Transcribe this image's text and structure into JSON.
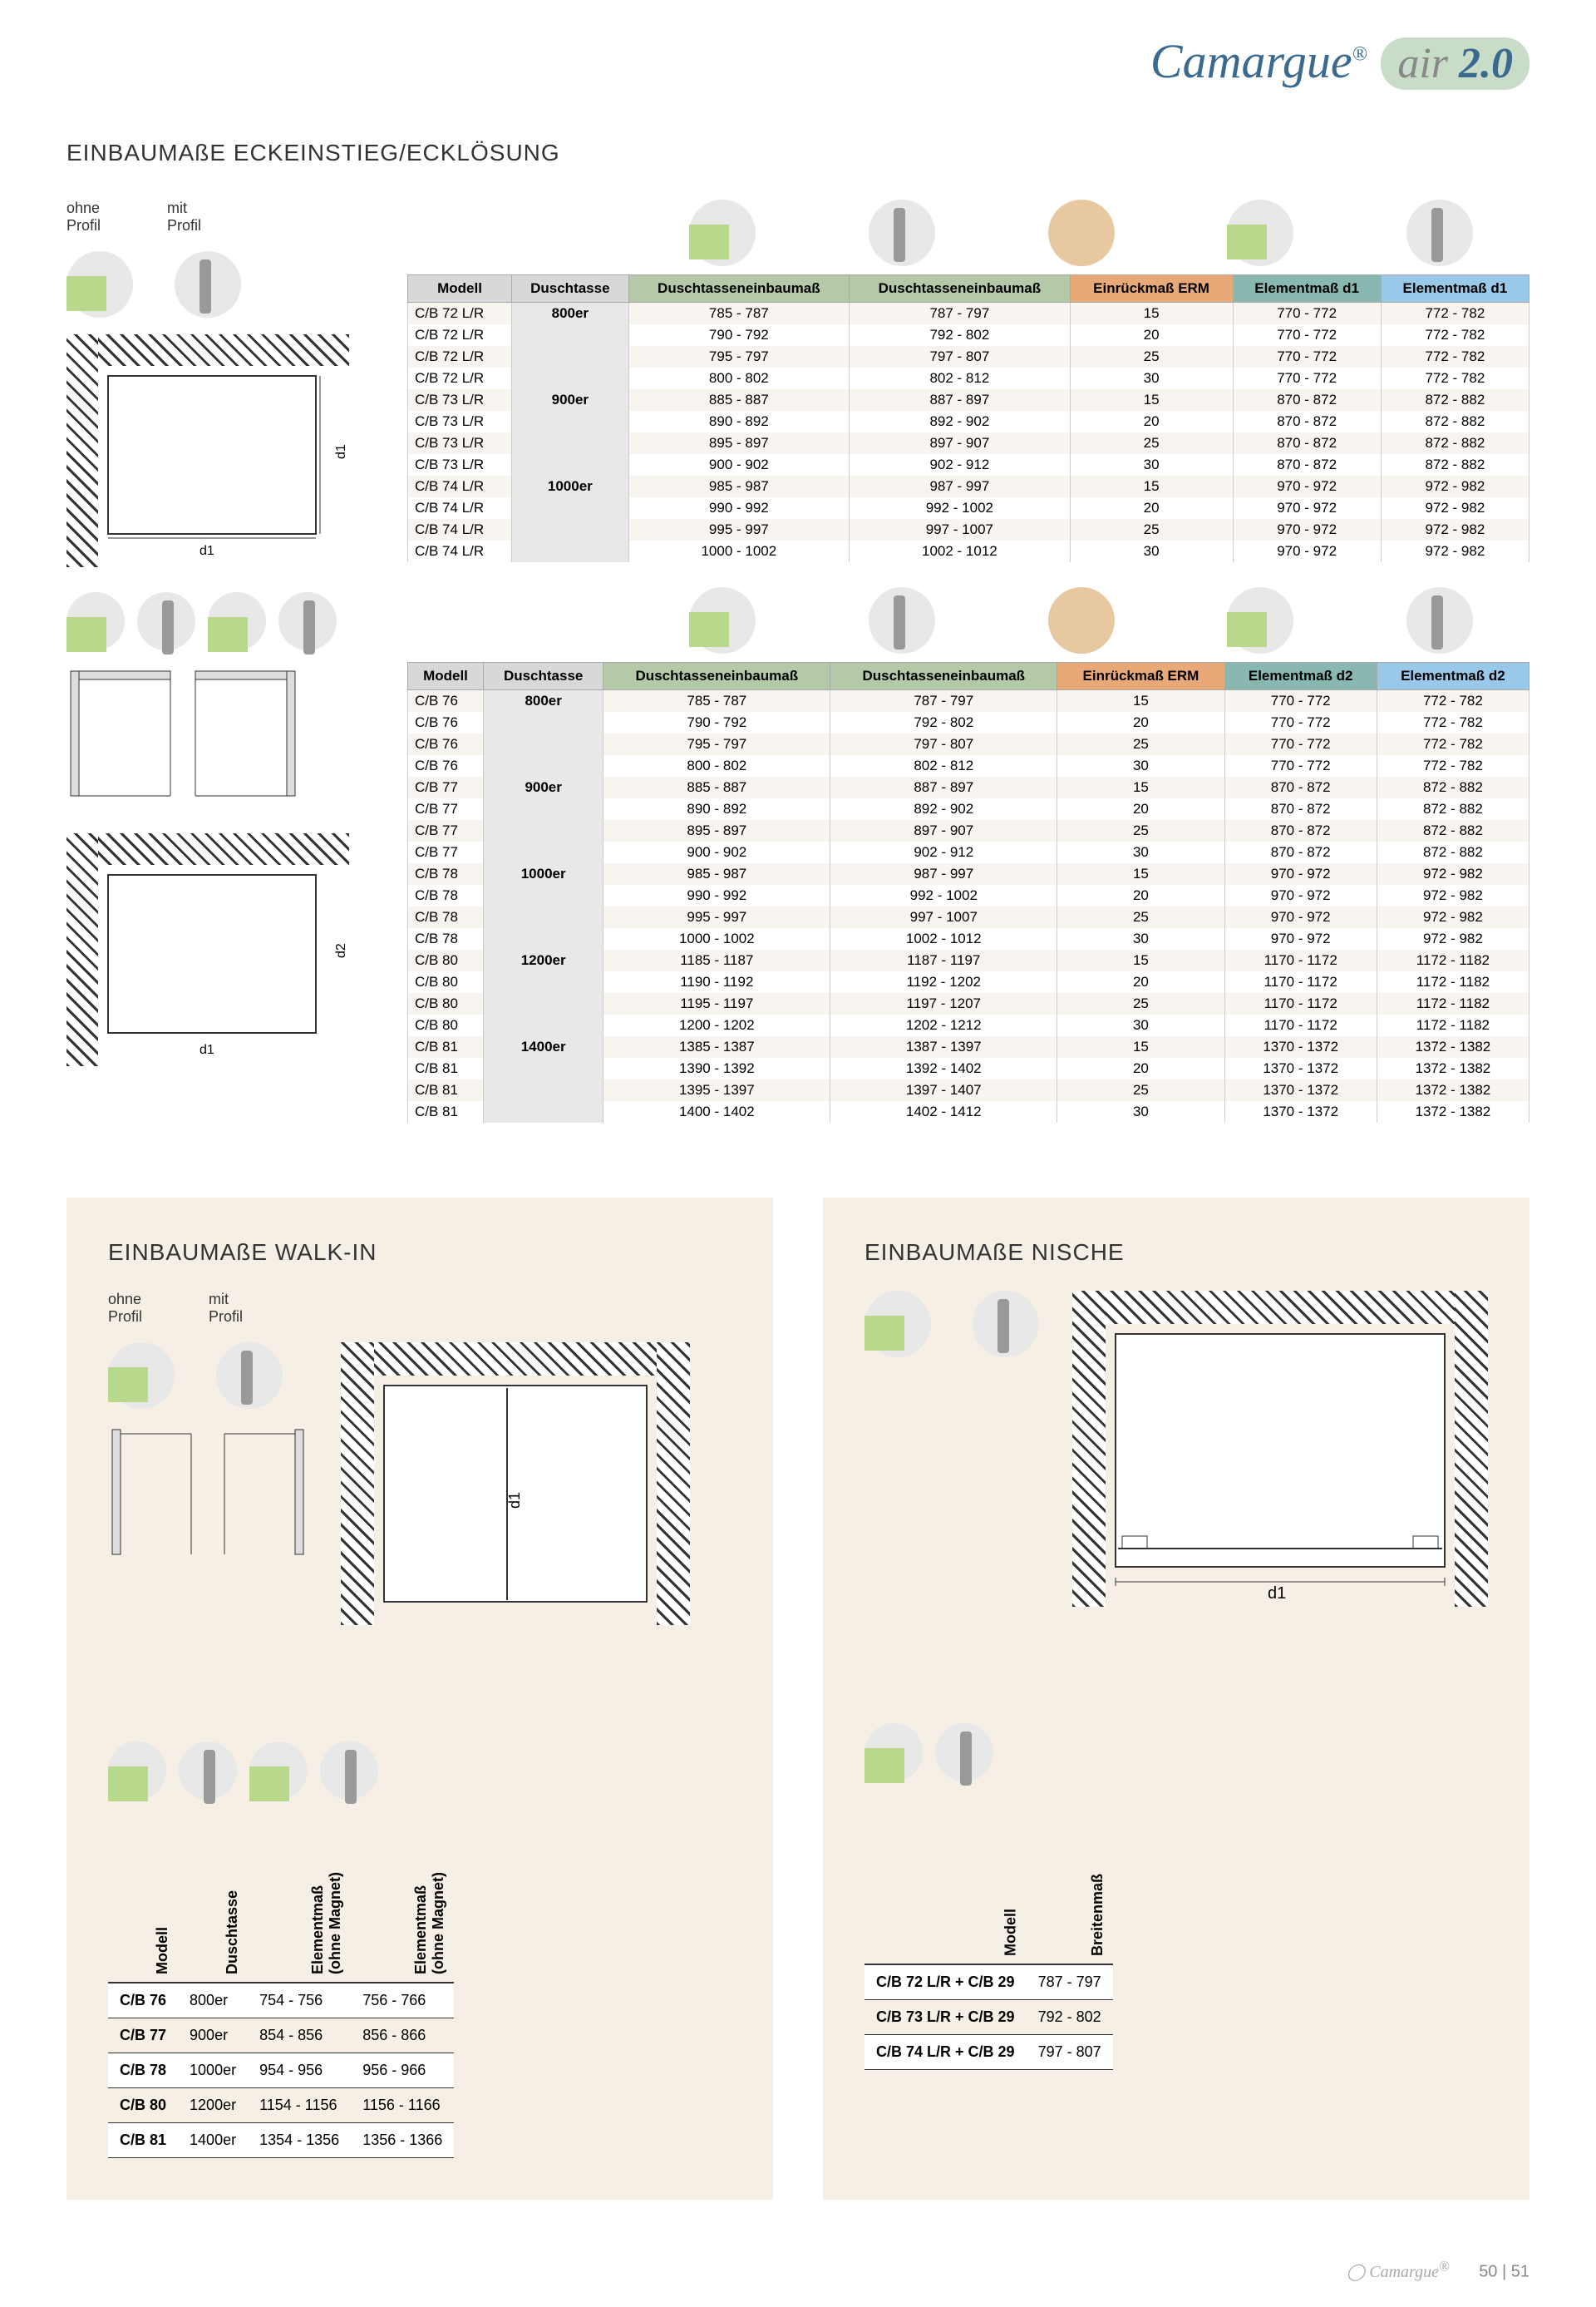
{
  "brand": {
    "name": "Camargue",
    "sub": "air",
    "ver": "2.0"
  },
  "page_numbers": "50 | 51",
  "sections": {
    "eck": "EINBAUMAßE ECKEINSTIEG/ECKLÖSUNG",
    "walkin": "EINBAUMAßE WALK-IN",
    "nische": "EINBAUMAßE NISCHE"
  },
  "labels": {
    "ohne_profil": "ohne\nProfil",
    "mit_profil": "mit\nProfil",
    "d1": "d1",
    "d2": "d2"
  },
  "table1": {
    "headers": [
      "Modell",
      "Duschtasse",
      "Duschtasseneinbaumaß",
      "Duschtasseneinbaumaß",
      "Einrückmaß ERM",
      "Elementmaß d1",
      "Elementmaß d1"
    ],
    "groups": [
      {
        "dt": "800er",
        "rows": [
          [
            "C/B 72 L/R",
            "785 - 787",
            "787 - 797",
            "15",
            "770 - 772",
            "772 - 782"
          ],
          [
            "C/B 72 L/R",
            "790 - 792",
            "792 - 802",
            "20",
            "770 - 772",
            "772 - 782"
          ],
          [
            "C/B 72 L/R",
            "795 - 797",
            "797 - 807",
            "25",
            "770 - 772",
            "772 - 782"
          ],
          [
            "C/B 72 L/R",
            "800 - 802",
            "802 - 812",
            "30",
            "770 - 772",
            "772 - 782"
          ]
        ]
      },
      {
        "dt": "900er",
        "rows": [
          [
            "C/B 73 L/R",
            "885 - 887",
            "887 - 897",
            "15",
            "870 - 872",
            "872 - 882"
          ],
          [
            "C/B 73 L/R",
            "890 - 892",
            "892 - 902",
            "20",
            "870 - 872",
            "872 - 882"
          ],
          [
            "C/B 73 L/R",
            "895 - 897",
            "897 - 907",
            "25",
            "870 - 872",
            "872 - 882"
          ],
          [
            "C/B 73 L/R",
            "900 - 902",
            "902 - 912",
            "30",
            "870 - 872",
            "872 - 882"
          ]
        ]
      },
      {
        "dt": "1000er",
        "rows": [
          [
            "C/B 74 L/R",
            "985 - 987",
            "987 - 997",
            "15",
            "970 - 972",
            "972 - 982"
          ],
          [
            "C/B 74 L/R",
            "990 - 992",
            "992 - 1002",
            "20",
            "970 - 972",
            "972 - 982"
          ],
          [
            "C/B 74 L/R",
            "995 - 997",
            "997 - 1007",
            "25",
            "970 - 972",
            "972 - 982"
          ],
          [
            "C/B 74 L/R",
            "1000 - 1002",
            "1002 - 1012",
            "30",
            "970 - 972",
            "972 - 982"
          ]
        ]
      }
    ]
  },
  "table2": {
    "headers": [
      "Modell",
      "Duschtasse",
      "Duschtasseneinbaumaß",
      "Duschtasseneinbaumaß",
      "Einrückmaß ERM",
      "Elementmaß d2",
      "Elementmaß d2"
    ],
    "groups": [
      {
        "dt": "800er",
        "rows": [
          [
            "C/B 76",
            "785 - 787",
            "787 - 797",
            "15",
            "770 - 772",
            "772 - 782"
          ],
          [
            "C/B 76",
            "790 - 792",
            "792 - 802",
            "20",
            "770 - 772",
            "772 - 782"
          ],
          [
            "C/B 76",
            "795 - 797",
            "797 - 807",
            "25",
            "770 - 772",
            "772 - 782"
          ],
          [
            "C/B 76",
            "800 - 802",
            "802 - 812",
            "30",
            "770 - 772",
            "772 - 782"
          ]
        ]
      },
      {
        "dt": "900er",
        "rows": [
          [
            "C/B 77",
            "885 - 887",
            "887 - 897",
            "15",
            "870 - 872",
            "872 - 882"
          ],
          [
            "C/B 77",
            "890 - 892",
            "892 - 902",
            "20",
            "870 - 872",
            "872 - 882"
          ],
          [
            "C/B 77",
            "895 - 897",
            "897 - 907",
            "25",
            "870 - 872",
            "872 - 882"
          ],
          [
            "C/B 77",
            "900 - 902",
            "902 - 912",
            "30",
            "870 - 872",
            "872 - 882"
          ]
        ]
      },
      {
        "dt": "1000er",
        "rows": [
          [
            "C/B 78",
            "985 - 987",
            "987 - 997",
            "15",
            "970 - 972",
            "972 - 982"
          ],
          [
            "C/B 78",
            "990 - 992",
            "992 - 1002",
            "20",
            "970 - 972",
            "972 - 982"
          ],
          [
            "C/B 78",
            "995 - 997",
            "997 - 1007",
            "25",
            "970 - 972",
            "972 - 982"
          ],
          [
            "C/B 78",
            "1000 - 1002",
            "1002 - 1012",
            "30",
            "970 - 972",
            "972 - 982"
          ]
        ]
      },
      {
        "dt": "1200er",
        "rows": [
          [
            "C/B 80",
            "1185 - 1187",
            "1187 - 1197",
            "15",
            "1170 - 1172",
            "1172 - 1182"
          ],
          [
            "C/B 80",
            "1190 - 1192",
            "1192 - 1202",
            "20",
            "1170 - 1172",
            "1172 - 1182"
          ],
          [
            "C/B 80",
            "1195 - 1197",
            "1197 - 1207",
            "25",
            "1170 - 1172",
            "1172 - 1182"
          ],
          [
            "C/B 80",
            "1200 - 1202",
            "1202 - 1212",
            "30",
            "1170 - 1172",
            "1172 - 1182"
          ]
        ]
      },
      {
        "dt": "1400er",
        "rows": [
          [
            "C/B 81",
            "1385 - 1387",
            "1387 - 1397",
            "15",
            "1370 - 1372",
            "1372 - 1382"
          ],
          [
            "C/B 81",
            "1390 - 1392",
            "1392 - 1402",
            "20",
            "1370 - 1372",
            "1372 - 1382"
          ],
          [
            "C/B 81",
            "1395 - 1397",
            "1397 - 1407",
            "25",
            "1370 - 1372",
            "1372 - 1382"
          ],
          [
            "C/B 81",
            "1400 - 1402",
            "1402 - 1412",
            "30",
            "1370 - 1372",
            "1372 - 1382"
          ]
        ]
      }
    ]
  },
  "walkin_table": {
    "headers": [
      "Modell",
      "Duschtasse",
      "Elementmaß\n(ohne Magnet)",
      "Elementmaß\n(ohne Magnet)"
    ],
    "rows": [
      [
        "C/B 76",
        "800er",
        "754 - 756",
        "756 - 766"
      ],
      [
        "C/B 77",
        "900er",
        "854 - 856",
        "856 - 866"
      ],
      [
        "C/B 78",
        "1000er",
        "954 - 956",
        "956 - 966"
      ],
      [
        "C/B 80",
        "1200er",
        "1154 - 1156",
        "1156 - 1166"
      ],
      [
        "C/B 81",
        "1400er",
        "1354 - 1356",
        "1356 - 1366"
      ]
    ]
  },
  "nische_table": {
    "headers": [
      "Modell",
      "Breitenmaß"
    ],
    "rows": [
      [
        "C/B 72 L/R + C/B 29",
        "787 - 797"
      ],
      [
        "C/B 73 L/R + C/B 29",
        "792 - 802"
      ],
      [
        "C/B 74 L/R + C/B 29",
        "797 - 807"
      ]
    ]
  },
  "colors": {
    "header_bg": "#d8d8d8",
    "header_green": "#b5c8a8",
    "header_orange": "#e8a878",
    "header_teal": "#88b8b0",
    "header_blue": "#9ac8e8",
    "panel_bg": "#f5efe5",
    "brand_blue": "#3a6a8f",
    "brand_green": "#c8dcc8"
  }
}
